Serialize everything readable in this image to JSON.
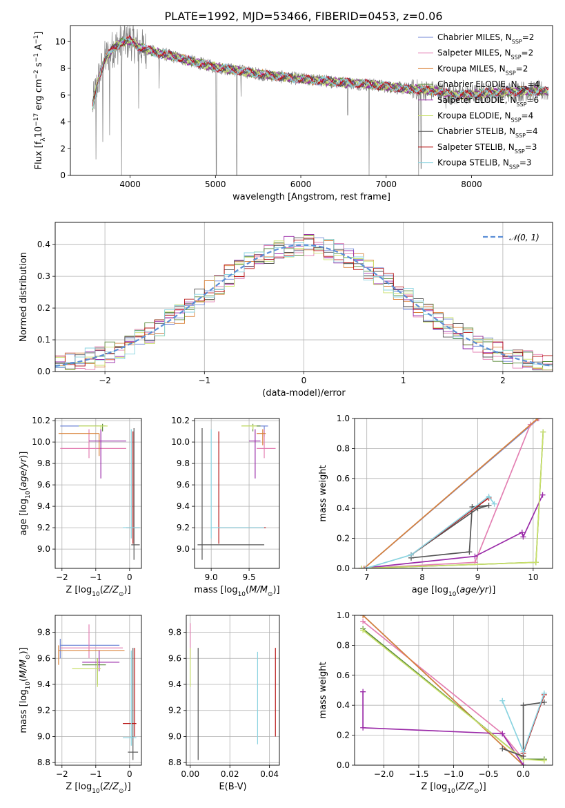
{
  "title": "PLATE=1992, MJD=53466, FIBERID=0453, z=0.06",
  "colors": {
    "chabrier_miles": "#6f86d6",
    "salpeter_miles": "#e37fb2",
    "kroupa_miles": "#d9823a",
    "chabrier_elodie": "#5a8a3a",
    "salpeter_elodie": "#9a2aa8",
    "kroupa_elodie": "#c9e06a",
    "chabrier_stelib": "#555555",
    "salpeter_stelib": "#b81414",
    "kroupa_stelib": "#8ad3e0",
    "data": "#808080",
    "gauss": "#5b8ed6"
  },
  "chart_data": [
    {
      "id": "spectrum",
      "type": "line",
      "xlabel": "wavelength [Angstrom, rest frame]",
      "ylabel": "Flux [f_λ 10^-17 erg cm^-2 s^-1 A^-1]",
      "xlim": [
        3300,
        8950
      ],
      "ylim": [
        0,
        11.2
      ],
      "xticks": [
        "4000",
        "5000",
        "6000",
        "7000",
        "8000"
      ],
      "yticks": [
        "0",
        "2",
        "4",
        "6",
        "8",
        "10"
      ],
      "legend_position": "right",
      "legend": [
        {
          "text": "Chabrier MILES, N",
          "sub": "SSP",
          "tail": "=2",
          "color": "chabrier_miles"
        },
        {
          "text": "Salpeter MILES, N",
          "sub": "SSP",
          "tail": "=2",
          "color": "salpeter_miles"
        },
        {
          "text": "Kroupa MILES, N",
          "sub": "SSP",
          "tail": "=2",
          "color": "kroupa_miles"
        },
        {
          "text": "Chabrier ELODIE, N",
          "sub": "SSP",
          "tail": "=4",
          "color": "chabrier_elodie"
        },
        {
          "text": "Salpeter ELODIE, N",
          "sub": "SSP",
          "tail": "=6",
          "color": "salpeter_elodie"
        },
        {
          "text": "Kroupa ELODIE, N",
          "sub": "SSP",
          "tail": "=4",
          "color": "kroupa_elodie"
        },
        {
          "text": "Chabrier STELIB, N",
          "sub": "SSP",
          "tail": "=4",
          "color": "chabrier_stelib"
        },
        {
          "text": "Salpeter STELIB, N",
          "sub": "SSP",
          "tail": "=3",
          "color": "salpeter_stelib"
        },
        {
          "text": "Kroupa STELIB, N",
          "sub": "SSP",
          "tail": "=3",
          "color": "kroupa_stelib"
        }
      ],
      "continuum": [
        [
          3560,
          5.2
        ],
        [
          3620,
          7.0
        ],
        [
          3700,
          8.6
        ],
        [
          3800,
          9.5
        ],
        [
          3900,
          9.9
        ],
        [
          4000,
          10.1
        ],
        [
          4100,
          9.6
        ],
        [
          4300,
          9.2
        ],
        [
          4500,
          8.9
        ],
        [
          4800,
          8.4
        ],
        [
          5000,
          8.1
        ],
        [
          5300,
          7.8
        ],
        [
          5600,
          7.5
        ],
        [
          6000,
          7.2
        ],
        [
          6400,
          7.0
        ],
        [
          6800,
          6.8
        ],
        [
          7200,
          6.5
        ],
        [
          7600,
          6.3
        ],
        [
          7800,
          6.0
        ],
        [
          8000,
          6.05
        ],
        [
          8200,
          6.2
        ],
        [
          8600,
          6.3
        ],
        [
          8900,
          6.3
        ]
      ],
      "spikes": [
        [
          3600,
          1.2
        ],
        [
          3680,
          2.5
        ],
        [
          3760,
          3.0
        ],
        [
          3900,
          0.0
        ],
        [
          4100,
          5.0
        ],
        [
          4340,
          6.5
        ],
        [
          5010,
          0.0
        ],
        [
          5250,
          0.0
        ],
        [
          5300,
          5.9
        ],
        [
          6550,
          4.5
        ],
        [
          6800,
          0.0
        ],
        [
          7380,
          0.0
        ],
        [
          7410,
          0.5
        ],
        [
          7700,
          5.0
        ]
      ]
    },
    {
      "id": "residuals",
      "type": "histogram",
      "xlabel": "(data-model)/error",
      "ylabel": "Normed distribution",
      "xlim": [
        -2.5,
        2.5
      ],
      "ylim": [
        0,
        0.47
      ],
      "xticks": [
        "−2",
        "−1",
        "0",
        "1",
        "2"
      ],
      "yticks": [
        "0.0",
        "0.1",
        "0.2",
        "0.3",
        "0.4"
      ],
      "legend_position": "top-right",
      "gaussian_label": "𝒩(0, 1)"
    },
    {
      "id": "age_vs_Z",
      "type": "errorbar",
      "xlabel": "Z [log10(Z/Z⊙)]",
      "ylabel": "age  [log10(age/yr)]",
      "xlim": [
        -2.2,
        0.35
      ],
      "ylim": [
        8.82,
        10.22
      ],
      "xticks": [
        "−2",
        "−1",
        "0"
      ],
      "yticks": [
        "9.0",
        "9.2",
        "9.4",
        "9.6",
        "9.8",
        "10.0",
        "10.2"
      ],
      "points": [
        {
          "c": "chabrier_miles",
          "x": -0.9,
          "xe": [
            -2.05,
            -0.9
          ],
          "y": 10.15,
          "ye": [
            10.15,
            10.15
          ]
        },
        {
          "c": "salpeter_miles",
          "x": -1.2,
          "xe": [
            -2.05,
            -0.1
          ],
          "y": 9.94,
          "ye": [
            9.85,
            10.12
          ]
        },
        {
          "c": "kroupa_miles",
          "x": -0.9,
          "xe": [
            -2.1,
            -0.9
          ],
          "y": 10.08,
          "ye": [
            9.87,
            10.08
          ]
        },
        {
          "c": "chabrier_elodie",
          "x": -0.8,
          "xe": [
            -1.5,
            -0.7
          ],
          "y": 10.15,
          "ye": [
            10.1,
            10.17
          ]
        },
        {
          "c": "salpeter_elodie",
          "x": -0.85,
          "xe": [
            -1.2,
            -0.1
          ],
          "y": 10.01,
          "ye": [
            9.66,
            10.12
          ]
        },
        {
          "c": "kroupa_elodie",
          "x": -0.85,
          "xe": [
            -1.5,
            -0.65
          ],
          "y": 10.15,
          "ye": [
            10.12,
            10.16
          ]
        },
        {
          "c": "chabrier_stelib",
          "x": 0.13,
          "xe": [
            0.05,
            0.3
          ],
          "y": 9.04,
          "ye": [
            8.9,
            10.13
          ]
        },
        {
          "c": "salpeter_stelib",
          "x": 0.1,
          "xe": [
            -0.1,
            0.3
          ],
          "y": 9.2,
          "ye": [
            9.05,
            10.1
          ]
        },
        {
          "c": "kroupa_stelib",
          "x": 0.05,
          "xe": [
            -0.2,
            0.3
          ],
          "y": 9.2,
          "ye": [
            9.1,
            10.12
          ]
        }
      ]
    },
    {
      "id": "age_vs_mass",
      "type": "errorbar",
      "xlabel": "mass [log10(M/M⊙)]",
      "ylabel": "",
      "xlim": [
        8.78,
        9.9
      ],
      "ylim": [
        8.82,
        10.22
      ],
      "xticks": [
        "9.0",
        "9.5"
      ],
      "yticks": [
        "9.0",
        "9.2",
        "9.4",
        "9.6",
        "9.8",
        "10.0",
        "10.2"
      ],
      "points": [
        {
          "c": "chabrier_miles",
          "x": 9.7,
          "xe": [
            9.6,
            9.75
          ],
          "y": 10.15,
          "ye": [
            10.05,
            10.15
          ]
        },
        {
          "c": "salpeter_miles",
          "x": 9.7,
          "xe": [
            9.6,
            9.85
          ],
          "y": 9.94,
          "ye": [
            9.85,
            10.12
          ]
        },
        {
          "c": "kroupa_miles",
          "x": 9.68,
          "xe": [
            9.6,
            9.72
          ],
          "y": 10.08,
          "ye": [
            9.97,
            10.12
          ]
        },
        {
          "c": "chabrier_elodie",
          "x": 9.55,
          "xe": [
            9.4,
            9.65
          ],
          "y": 10.15,
          "ye": [
            10.1,
            10.17
          ]
        },
        {
          "c": "salpeter_elodie",
          "x": 9.58,
          "xe": [
            9.5,
            9.65
          ],
          "y": 10.01,
          "ye": [
            9.66,
            10.12
          ]
        },
        {
          "c": "kroupa_elodie",
          "x": 9.55,
          "xe": [
            9.4,
            9.6
          ],
          "y": 10.15,
          "ye": [
            10.12,
            10.16
          ]
        },
        {
          "c": "chabrier_stelib",
          "x": 8.88,
          "xe": [
            8.82,
            9.7
          ],
          "y": 9.04,
          "ye": [
            8.9,
            10.13
          ]
        },
        {
          "c": "salpeter_stelib",
          "x": 9.1,
          "xe": [
            9.1,
            9.72
          ],
          "y": 9.2,
          "ye": [
            9.05,
            10.1
          ]
        },
        {
          "c": "kroupa_stelib",
          "x": 9.0,
          "xe": [
            9.0,
            9.7
          ],
          "y": 9.2,
          "ye": [
            9.1,
            10.12
          ]
        }
      ]
    },
    {
      "id": "massweight_vs_age",
      "type": "line",
      "xlabel": "age  [log10(age/yr)]",
      "ylabel": "mass weight",
      "xlim": [
        6.78,
        10.35
      ],
      "ylim": [
        0,
        1
      ],
      "xticks": [
        "7",
        "8",
        "9",
        "10"
      ],
      "yticks": [
        "0.0",
        "0.2",
        "0.4",
        "0.6",
        "0.8",
        "1.0"
      ],
      "series": [
        {
          "c": "chabrier_miles",
          "x": [
            6.95,
            10.1
          ],
          "y": [
            0.0,
            1.0
          ]
        },
        {
          "c": "salpeter_miles",
          "x": [
            6.95,
            8.95,
            9.95,
            10.1
          ],
          "y": [
            0.0,
            0.04,
            0.96,
            1.0
          ]
        },
        {
          "c": "kroupa_miles",
          "x": [
            6.95,
            10.08
          ],
          "y": [
            0.0,
            1.0
          ]
        },
        {
          "c": "chabrier_elodie",
          "x": [
            6.9,
            10.05,
            10.18
          ],
          "y": [
            0.0,
            0.04,
            0.91
          ]
        },
        {
          "c": "salpeter_elodie",
          "x": [
            6.9,
            8.95,
            9.8,
            9.82,
            10.17
          ],
          "y": [
            0.0,
            0.08,
            0.24,
            0.21,
            0.49
          ]
        },
        {
          "c": "kroupa_elodie",
          "x": [
            6.9,
            10.05,
            10.18
          ],
          "y": [
            0.0,
            0.04,
            0.91
          ]
        },
        {
          "c": "chabrier_stelib",
          "x": [
            7.8,
            8.85,
            8.9,
            9.2,
            9.0,
            7.8
          ],
          "y": [
            0.07,
            0.11,
            0.41,
            0.42,
            0.4,
            0.09
          ]
        },
        {
          "c": "salpeter_stelib",
          "x": [
            7.8,
            9.2
          ],
          "y": [
            0.09,
            0.47
          ]
        },
        {
          "c": "kroupa_stelib",
          "x": [
            6.98,
            7.8,
            9.2,
            9.3
          ],
          "y": [
            0.0,
            0.09,
            0.48,
            0.43
          ]
        }
      ]
    },
    {
      "id": "mass_vs_Z",
      "type": "errorbar",
      "xlabel": "Z [log10(Z/Z⊙)]",
      "ylabel": "mass [log10(M/M⊙)]",
      "xlim": [
        -2.2,
        0.35
      ],
      "ylim": [
        8.78,
        9.93
      ],
      "xticks": [
        "−2",
        "−1",
        "0"
      ],
      "yticks": [
        "8.8",
        "9.0",
        "9.2",
        "9.4",
        "9.6",
        "9.8"
      ],
      "points": [
        {
          "c": "chabrier_miles",
          "x": -2.05,
          "xe": [
            -2.05,
            -0.3
          ],
          "y": 9.7,
          "ye": [
            9.6,
            9.75
          ]
        },
        {
          "c": "salpeter_miles",
          "x": -1.2,
          "xe": [
            -2.05,
            -0.2
          ],
          "y": 9.68,
          "ye": [
            9.6,
            9.86
          ]
        },
        {
          "c": "kroupa_miles",
          "x": -2.1,
          "xe": [
            -2.1,
            -0.15
          ],
          "y": 9.66,
          "ye": [
            9.55,
            9.7
          ]
        },
        {
          "c": "chabrier_elodie",
          "x": -0.95,
          "xe": [
            -1.4,
            -0.7
          ],
          "y": 9.55,
          "ye": [
            9.4,
            9.6
          ]
        },
        {
          "c": "salpeter_elodie",
          "x": -0.9,
          "xe": [
            -1.4,
            -0.3
          ],
          "y": 9.57,
          "ye": [
            9.5,
            9.66
          ]
        },
        {
          "c": "kroupa_elodie",
          "x": -0.95,
          "xe": [
            -1.7,
            -0.85
          ],
          "y": 9.52,
          "ye": [
            9.38,
            9.6
          ]
        },
        {
          "c": "chabrier_stelib",
          "x": 0.1,
          "xe": [
            -0.05,
            0.25
          ],
          "y": 8.88,
          "ye": [
            8.82,
            9.68
          ]
        },
        {
          "c": "salpeter_stelib",
          "x": 0.15,
          "xe": [
            -0.2,
            0.2
          ],
          "y": 9.1,
          "ye": [
            9.0,
            9.68
          ]
        },
        {
          "c": "kroupa_stelib",
          "x": 0.05,
          "xe": [
            -0.2,
            0.2
          ],
          "y": 8.99,
          "ye": [
            8.93,
            9.66
          ]
        }
      ]
    },
    {
      "id": "mass_vs_ebv",
      "type": "errorbar",
      "xlabel": "E(B-V)",
      "ylabel": "",
      "xlim": [
        -0.002,
        0.045
      ],
      "ylim": [
        8.78,
        9.93
      ],
      "xticks": [
        "0.00",
        "0.02",
        "0.04"
      ],
      "yticks": [
        "8.8",
        "9.0",
        "9.2",
        "9.4",
        "9.6",
        "9.8"
      ],
      "points": [
        {
          "c": "salpeter_miles",
          "x": 0.0,
          "xe": [
            0.0,
            0.0
          ],
          "y": 9.7,
          "ye": [
            9.6,
            9.87
          ]
        },
        {
          "c": "kroupa_elodie",
          "x": 0.0,
          "xe": [
            0.0,
            0.0
          ],
          "y": 9.5,
          "ye": [
            9.38,
            9.68
          ]
        },
        {
          "c": "chabrier_stelib",
          "x": 0.004,
          "xe": [
            0.004,
            0.004
          ],
          "y": 9.3,
          "ye": [
            8.82,
            9.68
          ]
        },
        {
          "c": "kroupa_stelib",
          "x": 0.034,
          "xe": [
            0.034,
            0.034
          ],
          "y": 9.3,
          "ye": [
            8.94,
            9.65
          ]
        },
        {
          "c": "salpeter_stelib",
          "x": 0.043,
          "xe": [
            0.043,
            0.043
          ],
          "y": 9.3,
          "ye": [
            9.0,
            9.68
          ]
        }
      ]
    },
    {
      "id": "massweight_vs_Z",
      "type": "line",
      "xlabel": "Z [log10(Z/Z⊙)]",
      "ylabel": "mass weight",
      "xlim": [
        -2.42,
        0.42
      ],
      "ylim": [
        0,
        1
      ],
      "xticks": [
        "−2.0",
        "−1.5",
        "−1.0",
        "−0.5",
        "0.0"
      ],
      "yticks": [
        "0.0",
        "0.2",
        "0.4",
        "0.6",
        "0.8",
        "1.0"
      ],
      "series": [
        {
          "c": "chabrier_miles",
          "x": [
            -2.3,
            0.0
          ],
          "y": [
            1.0,
            0.0
          ]
        },
        {
          "c": "salpeter_miles",
          "x": [
            -2.3,
            -0.3,
            0.0
          ],
          "y": [
            0.96,
            0.21,
            0.04
          ]
        },
        {
          "c": "kroupa_miles",
          "x": [
            -2.3,
            0.0
          ],
          "y": [
            1.0,
            0.0
          ]
        },
        {
          "c": "chabrier_elodie",
          "x": [
            -2.3,
            0.0,
            0.3
          ],
          "y": [
            0.91,
            0.04,
            0.04
          ]
        },
        {
          "c": "salpeter_elodie",
          "x": [
            -2.3,
            -2.3,
            -0.3,
            0.0
          ],
          "y": [
            0.49,
            0.25,
            0.21,
            0.0
          ]
        },
        {
          "c": "kroupa_elodie",
          "x": [
            -2.3,
            0.0,
            0.3
          ],
          "y": [
            0.9,
            0.04,
            0.03
          ]
        },
        {
          "c": "chabrier_stelib",
          "x": [
            -0.3,
            0.0,
            0.0,
            0.3
          ],
          "y": [
            0.11,
            0.06,
            0.4,
            0.42
          ]
        },
        {
          "c": "salpeter_stelib",
          "x": [
            0.0,
            0.3
          ],
          "y": [
            0.08,
            0.47
          ]
        },
        {
          "c": "kroupa_stelib",
          "x": [
            -0.3,
            0.0,
            0.3
          ],
          "y": [
            0.43,
            0.09,
            0.48
          ]
        }
      ]
    }
  ]
}
